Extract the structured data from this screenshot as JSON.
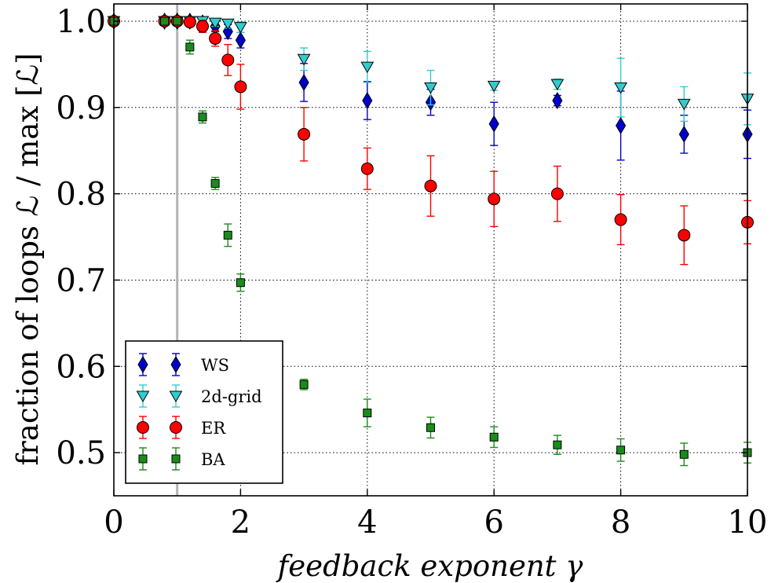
{
  "chart_data": {
    "type": "scatter",
    "xlabel": "feedback exponent γ",
    "ylabel": "fraction of loops ℒ / max [ℒ]",
    "xlim": [
      0,
      10
    ],
    "ylim": [
      0.45,
      1.02
    ],
    "xticks": [
      0,
      2,
      4,
      6,
      8,
      10
    ],
    "xtick_labels": [
      "0",
      "2",
      "4",
      "6",
      "8",
      "10"
    ],
    "yticks": [
      0.5,
      0.6,
      0.7,
      0.8,
      0.9,
      1.0
    ],
    "ytick_labels": [
      "0.5",
      "0.6",
      "0.7",
      "0.8",
      "0.9",
      "1.0"
    ],
    "grid": true,
    "reference_line_x": 1,
    "legend_position": "lower-left",
    "series": [
      {
        "name": "WS",
        "marker": "diamond",
        "color": "#0000cc",
        "x": [
          0,
          0.8,
          1.0,
          1.2,
          1.4,
          1.6,
          1.8,
          2,
          3,
          4,
          5,
          6,
          7,
          8,
          9,
          10
        ],
        "y": [
          1.0,
          1.0,
          1.0,
          1.0,
          0.998,
          0.994,
          0.988,
          0.978,
          0.929,
          0.908,
          0.906,
          0.881,
          0.908,
          0.879,
          0.869,
          0.869
        ],
        "err": [
          0,
          0.002,
          0.002,
          0.003,
          0.004,
          0.006,
          0.008,
          0.009,
          0.022,
          0.022,
          0.015,
          0.025,
          0.006,
          0.04,
          0.022,
          0.028
        ]
      },
      {
        "name": "2d-grid",
        "marker": "triangle-down",
        "color": "#33cccc",
        "x": [
          0,
          0.8,
          1.0,
          1.2,
          1.4,
          1.6,
          1.8,
          2,
          3,
          4,
          5,
          6,
          7,
          8,
          9,
          10
        ],
        "y": [
          1.0,
          1.0,
          1.0,
          1.0,
          1.0,
          0.998,
          0.997,
          0.993,
          0.956,
          0.947,
          0.923,
          0.925,
          0.927,
          0.923,
          0.904,
          0.91
        ],
        "err": [
          0,
          0.001,
          0.001,
          0.002,
          0.003,
          0.004,
          0.005,
          0.006,
          0.013,
          0.018,
          0.02,
          0.005,
          0.006,
          0.034,
          0.02,
          0.03
        ]
      },
      {
        "name": "ER",
        "marker": "circle",
        "color": "#ff0000",
        "x": [
          0,
          0.8,
          1.0,
          1.2,
          1.4,
          1.6,
          1.8,
          2,
          3,
          4,
          5,
          6,
          7,
          8,
          9,
          10
        ],
        "y": [
          1.0,
          1.0,
          1.0,
          0.999,
          0.994,
          0.98,
          0.955,
          0.924,
          0.869,
          0.829,
          0.809,
          0.794,
          0.8,
          0.77,
          0.752,
          0.767
        ],
        "err": [
          0,
          0.002,
          0.003,
          0.004,
          0.007,
          0.009,
          0.018,
          0.026,
          0.031,
          0.024,
          0.035,
          0.032,
          0.032,
          0.029,
          0.034,
          0.025
        ]
      },
      {
        "name": "BA",
        "marker": "square",
        "color": "#1a8c1a",
        "x": [
          0,
          0.8,
          1.0,
          1.2,
          1.4,
          1.6,
          1.8,
          2,
          3,
          4,
          5,
          6,
          7,
          8,
          9,
          10
        ],
        "y": [
          1.0,
          1.0,
          1.0,
          0.97,
          0.889,
          0.812,
          0.752,
          0.697,
          0.579,
          0.546,
          0.529,
          0.518,
          0.509,
          0.503,
          0.498,
          0.5
        ],
        "err": [
          0,
          0.002,
          0.002,
          0.008,
          0.007,
          0.007,
          0.013,
          0.01,
          0.006,
          0.016,
          0.012,
          0.012,
          0.011,
          0.013,
          0.013,
          0.012
        ]
      }
    ]
  }
}
